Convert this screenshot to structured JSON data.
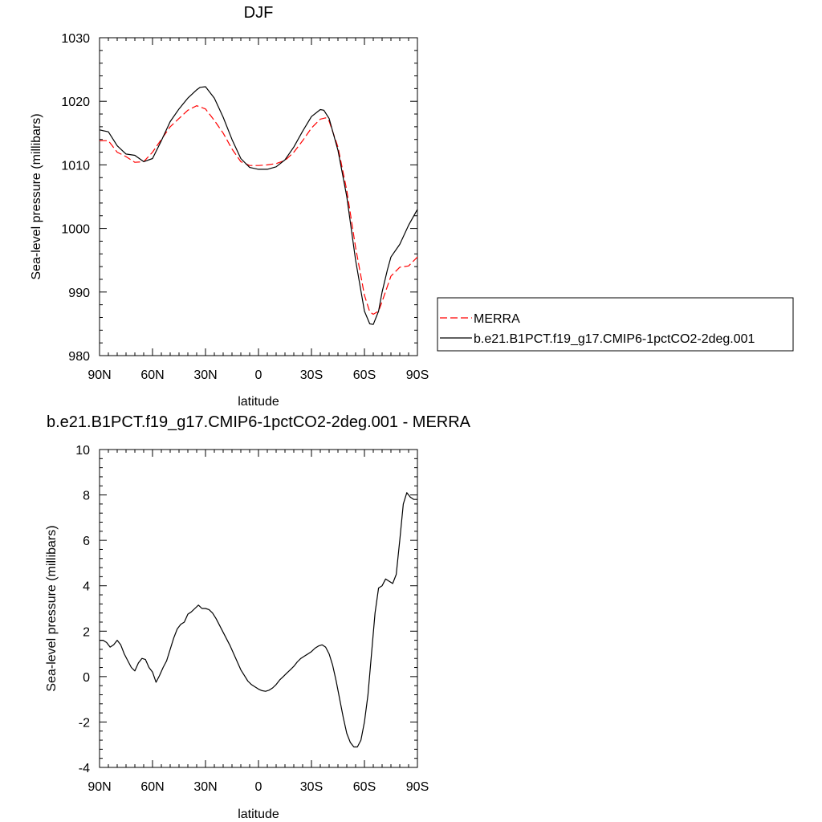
{
  "chart_data": [
    {
      "type": "line",
      "title": "DJF",
      "xlabel": "latitude",
      "ylabel": "Sea-level pressure (millibars)",
      "xlim": [
        90,
        -90
      ],
      "ylim": [
        980,
        1030
      ],
      "x_ticks": [
        {
          "value": 90,
          "label": "90N"
        },
        {
          "value": 60,
          "label": "60N"
        },
        {
          "value": 30,
          "label": "30N"
        },
        {
          "value": 0,
          "label": "0"
        },
        {
          "value": -30,
          "label": "30S"
        },
        {
          "value": -60,
          "label": "60S"
        },
        {
          "value": -90,
          "label": "90S"
        }
      ],
      "y_ticks": [
        {
          "value": 980,
          "label": "980"
        },
        {
          "value": 990,
          "label": "990"
        },
        {
          "value": 1000,
          "label": "1000"
        },
        {
          "value": 1010,
          "label": "1010"
        },
        {
          "value": 1020,
          "label": "1020"
        },
        {
          "value": 1030,
          "label": "1030"
        }
      ],
      "grid": false,
      "legend_position": "right",
      "series": [
        {
          "name": "MERRA",
          "color": "#ff0000",
          "dash": "dashed",
          "x": [
            90,
            85,
            80,
            75,
            70,
            65,
            60,
            55,
            50,
            45,
            40,
            35,
            30,
            25,
            20,
            15,
            10,
            5,
            0,
            -5,
            -10,
            -15,
            -20,
            -25,
            -30,
            -35,
            -38,
            -40,
            -45,
            -50,
            -55,
            -60,
            -63,
            -65,
            -68,
            -70,
            -75,
            -80,
            -85,
            -90
          ],
          "y": [
            1013.8,
            1013.8,
            1012.0,
            1011.3,
            1010.4,
            1010.5,
            1012.0,
            1014.0,
            1016.0,
            1017.3,
            1018.6,
            1019.3,
            1018.8,
            1017.0,
            1015.0,
            1012.5,
            1010.5,
            1009.9,
            1009.9,
            1010.0,
            1010.2,
            1010.7,
            1012.0,
            1013.8,
            1015.8,
            1017.2,
            1017.4,
            1016.9,
            1012.8,
            1006.0,
            997.0,
            989.5,
            986.9,
            986.5,
            987.0,
            988.5,
            992.5,
            993.9,
            994.1,
            995.5
          ]
        },
        {
          "name": "b.e21.B1PCT.f19_g17.CMIP6-1pctCO2-2deg.001",
          "color": "#000000",
          "dash": "solid",
          "x": [
            90,
            85,
            80,
            75,
            70,
            65,
            60,
            55,
            50,
            45,
            40,
            35,
            33,
            30,
            25,
            20,
            15,
            10,
            5,
            0,
            -5,
            -10,
            -15,
            -20,
            -25,
            -30,
            -35,
            -37,
            -40,
            -45,
            -50,
            -55,
            -60,
            -63,
            -65,
            -68,
            -70,
            -73,
            -75,
            -80,
            -85,
            -90
          ],
          "y": [
            1015.5,
            1015.2,
            1013.0,
            1011.7,
            1011.5,
            1010.5,
            1011.0,
            1013.8,
            1016.8,
            1018.8,
            1020.5,
            1021.8,
            1022.2,
            1022.3,
            1020.5,
            1017.5,
            1014.0,
            1011.0,
            1009.6,
            1009.3,
            1009.3,
            1009.7,
            1010.8,
            1012.8,
            1015.3,
            1017.6,
            1018.7,
            1018.6,
            1017.3,
            1012.3,
            1005.0,
            995.0,
            987.0,
            985.0,
            984.9,
            987.0,
            990.0,
            993.5,
            995.5,
            997.5,
            1000.5,
            1003.0
          ]
        }
      ]
    },
    {
      "type": "line",
      "title": "b.e21.B1PCT.f19_g17.CMIP6-1pctCO2-2deg.001 - MERRA",
      "xlabel": "latitude",
      "ylabel": "Sea-level pressure (millibars)",
      "xlim": [
        90,
        -90
      ],
      "ylim": [
        -4,
        10
      ],
      "x_ticks": [
        {
          "value": 90,
          "label": "90N"
        },
        {
          "value": 60,
          "label": "60N"
        },
        {
          "value": 30,
          "label": "30N"
        },
        {
          "value": 0,
          "label": "0"
        },
        {
          "value": -30,
          "label": "30S"
        },
        {
          "value": -60,
          "label": "60S"
        },
        {
          "value": -90,
          "label": "90S"
        }
      ],
      "y_ticks": [
        {
          "value": -4,
          "label": "-4"
        },
        {
          "value": -2,
          "label": "-2"
        },
        {
          "value": 0,
          "label": "0"
        },
        {
          "value": 2,
          "label": "2"
        },
        {
          "value": 4,
          "label": "4"
        },
        {
          "value": 6,
          "label": "6"
        },
        {
          "value": 8,
          "label": "8"
        },
        {
          "value": 10,
          "label": "10"
        }
      ],
      "grid": false,
      "series": [
        {
          "color": "#000000",
          "dash": "solid",
          "x": [
            90,
            88,
            86,
            84,
            82,
            80,
            78,
            76,
            74,
            72,
            70,
            68,
            66,
            64,
            62,
            60,
            58,
            56,
            54,
            52,
            50,
            48,
            46,
            44,
            42,
            40,
            38,
            36,
            34,
            32,
            30,
            28,
            26,
            24,
            22,
            20,
            18,
            16,
            14,
            12,
            10,
            8,
            6,
            4,
            2,
            0,
            -2,
            -4,
            -6,
            -8,
            -10,
            -12,
            -14,
            -16,
            -18,
            -20,
            -22,
            -24,
            -26,
            -28,
            -30,
            -32,
            -34,
            -36,
            -38,
            -40,
            -42,
            -44,
            -46,
            -48,
            -50,
            -52,
            -54,
            -56,
            -58,
            -60,
            -62,
            -64,
            -66,
            -68,
            -70,
            -72,
            -74,
            -76,
            -78,
            -80,
            -82,
            -84,
            -86,
            -88,
            -90
          ],
          "y": [
            1.6,
            1.6,
            1.5,
            1.3,
            1.4,
            1.6,
            1.4,
            1.0,
            0.7,
            0.4,
            0.25,
            0.6,
            0.8,
            0.75,
            0.4,
            0.2,
            -0.25,
            0.05,
            0.4,
            0.7,
            1.2,
            1.7,
            2.1,
            2.3,
            2.4,
            2.75,
            2.85,
            3.0,
            3.15,
            3.0,
            3.0,
            2.95,
            2.8,
            2.55,
            2.25,
            1.95,
            1.65,
            1.35,
            1.0,
            0.65,
            0.3,
            0.05,
            -0.2,
            -0.35,
            -0.45,
            -0.55,
            -0.62,
            -0.65,
            -0.6,
            -0.5,
            -0.35,
            -0.15,
            0.0,
            0.15,
            0.3,
            0.45,
            0.65,
            0.8,
            0.9,
            1.0,
            1.1,
            1.25,
            1.35,
            1.4,
            1.3,
            1.0,
            0.5,
            -0.2,
            -1.0,
            -1.8,
            -2.5,
            -2.9,
            -3.1,
            -3.1,
            -2.8,
            -2.0,
            -0.8,
            1.0,
            2.8,
            3.9,
            4.0,
            4.3,
            4.2,
            4.1,
            4.5,
            6.0,
            7.6,
            8.1,
            7.9,
            7.8,
            7.8
          ]
        }
      ]
    }
  ]
}
